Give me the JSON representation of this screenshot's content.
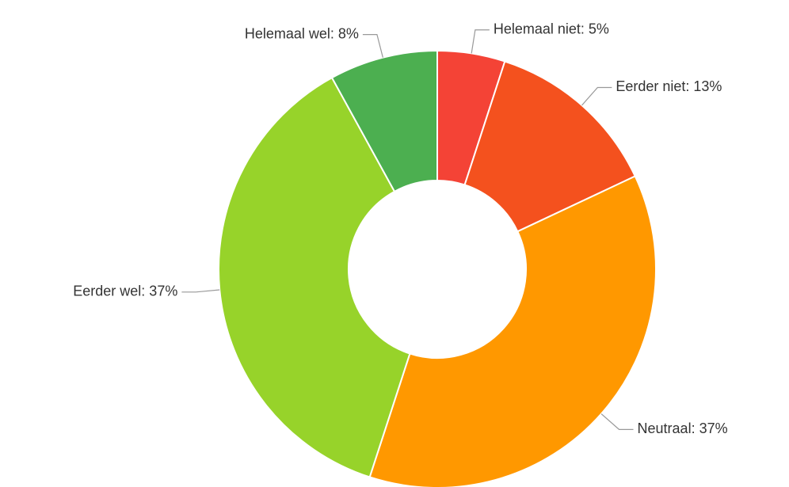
{
  "chart_data": {
    "type": "donut",
    "values": [
      5,
      13,
      37,
      37,
      8
    ],
    "value_labels": [
      "Helemaal niet: 5%",
      "Eerder niet: 13%",
      "Neutraal: 37%",
      "Eerder wel: 37%",
      "Helemaal wel: 8%"
    ],
    "colors": [
      "#f44336",
      "#f4511e",
      "#ff9800",
      "#97d32a",
      "#4caf50"
    ]
  }
}
